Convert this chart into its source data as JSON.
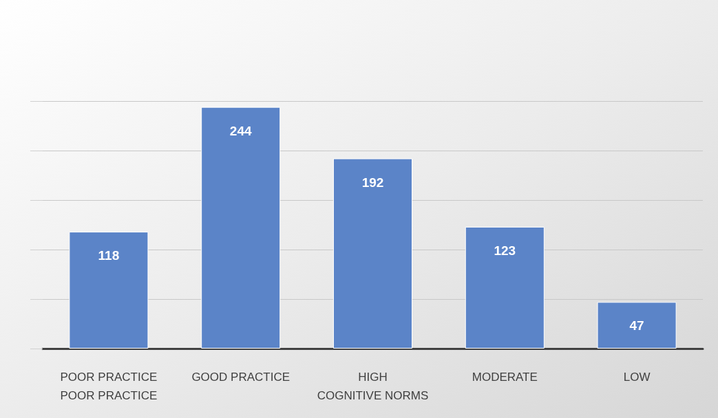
{
  "chart_data": {
    "type": "bar",
    "categories": [
      "POOR PRACTICE\nPOOR PRACTICE",
      "GOOD PRACTICE",
      "HIGH\nCOGNITIVE NORMS",
      "MODERATE",
      "LOW"
    ],
    "values": [
      118,
      244,
      192,
      123,
      47
    ],
    "color": "#5b84c8",
    "grid": "y",
    "tick_labels": "x",
    "data_labels": true
  }
}
